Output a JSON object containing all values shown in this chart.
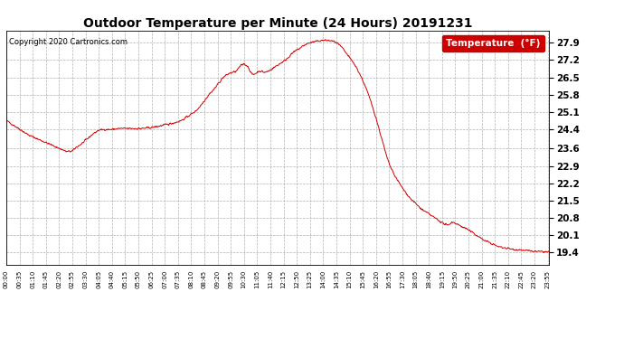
{
  "title": "Outdoor Temperature per Minute (24 Hours) 20191231",
  "copyright": "Copyright 2020 Cartronics.com",
  "legend_label": "Temperature  (°F)",
  "line_color": "#cc0000",
  "background_color": "#ffffff",
  "grid_color": "#b0b0b0",
  "yticks": [
    19.4,
    20.1,
    20.8,
    21.5,
    22.2,
    22.9,
    23.6,
    24.4,
    25.1,
    25.8,
    26.5,
    27.2,
    27.9
  ],
  "ylim": [
    18.9,
    28.4
  ],
  "xtick_start": 0,
  "xtick_step": 35,
  "total_minutes": 1440
}
